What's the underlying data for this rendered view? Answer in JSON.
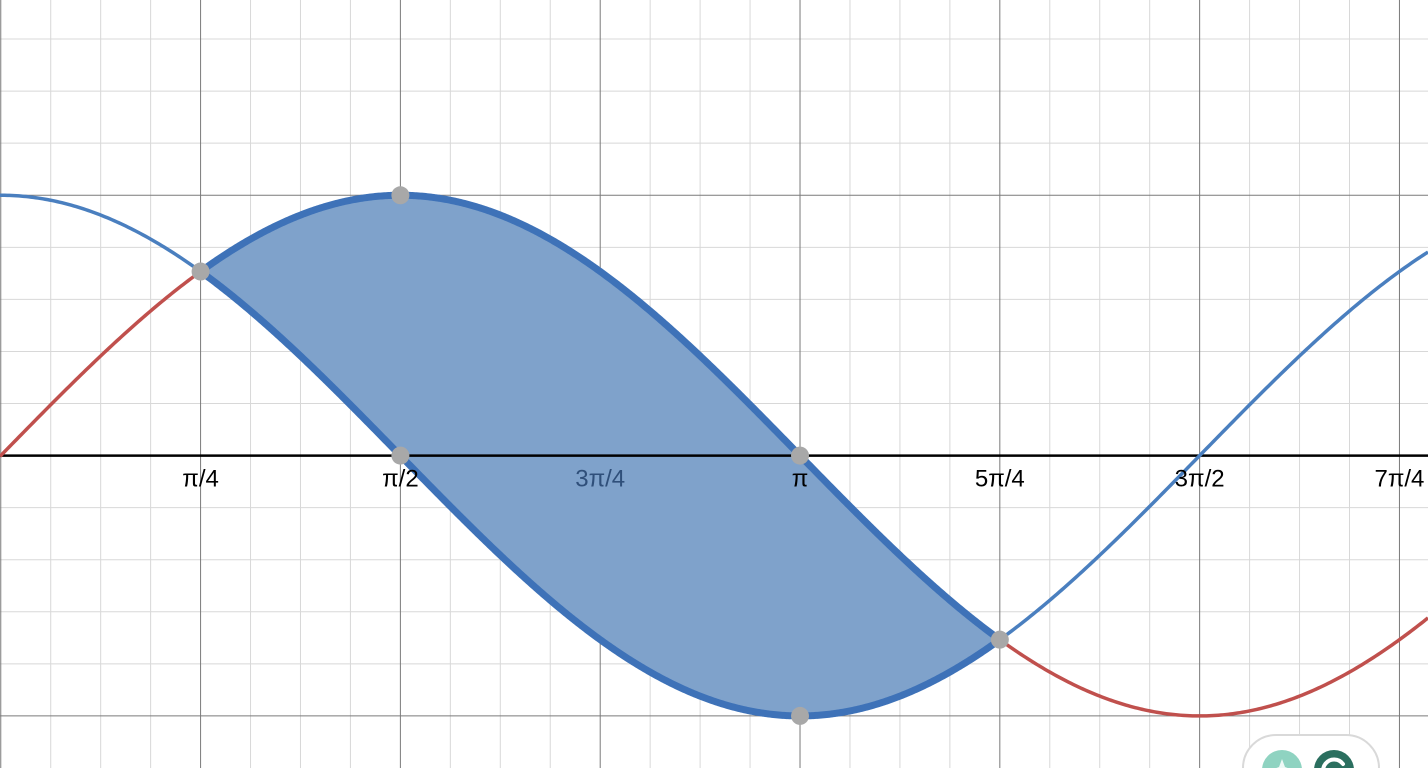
{
  "chart_data": {
    "type": "line",
    "title": "",
    "xlabel": "",
    "ylabel": "",
    "xlim": [
      -0.003,
      5.61
    ],
    "ylim": [
      -1.2,
      1.75
    ],
    "x_ticks": [
      {
        "value": 0.7854,
        "label": "π/4"
      },
      {
        "value": 1.5708,
        "label": "π/2"
      },
      {
        "value": 2.3562,
        "label": "3π/4"
      },
      {
        "value": 3.1416,
        "label": "π"
      },
      {
        "value": 3.927,
        "label": "5π/4"
      },
      {
        "value": 4.7124,
        "label": "3π/2"
      },
      {
        "value": 5.4978,
        "label": "7π/4"
      }
    ],
    "grid": true,
    "series": [
      {
        "function": "sin(x)",
        "color": "#c0504d"
      },
      {
        "function": "cos(x)",
        "color": "#4a7fbf"
      }
    ],
    "shaded_region": {
      "between": [
        "sin(x)",
        "cos(x)"
      ],
      "x_from": 0.7854,
      "x_to": 3.927,
      "fill": "#7fa2cb",
      "stroke": "#3e72b8"
    },
    "points": [
      {
        "x": 0.7854,
        "y": 0.7071
      },
      {
        "x": 1.5708,
        "y": 1
      },
      {
        "x": 1.5708,
        "y": 0
      },
      {
        "x": 3.1416,
        "y": 0
      },
      {
        "x": 3.1416,
        "y": -1
      },
      {
        "x": 3.927,
        "y": -0.7071
      }
    ],
    "point_color": "#a8a8a8",
    "axis_color": "#000000",
    "tick_label_color": "#000000",
    "tick_label_color_dim": "#2f4f7a"
  }
}
